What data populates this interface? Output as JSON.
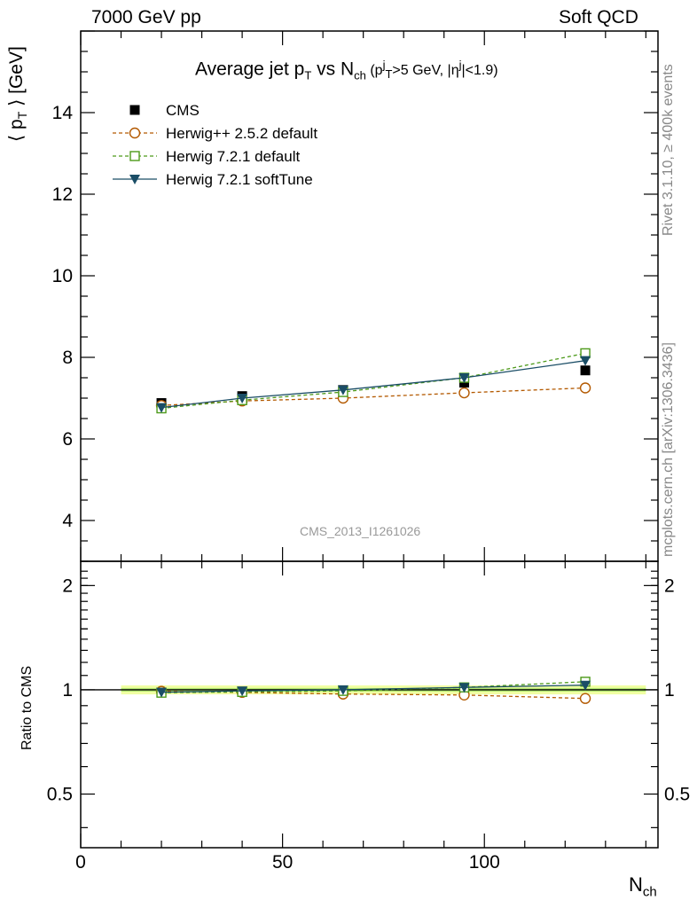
{
  "header": {
    "left": "7000 GeV pp",
    "right": "Soft QCD"
  },
  "side_labels": {
    "rivet": "Rivet 3.1.10, ≥ 400k events",
    "mcplots": "mcplots.cern.ch [arXiv:1306.3436]"
  },
  "analysis_id": "CMS_2013_I1261026",
  "colors": {
    "cms": "#000000",
    "herwigpp": "#b35900",
    "herwig721": "#4d9a1a",
    "softtune": "#1a4d66",
    "band_outer": "#eeff99",
    "band_inner": "#66cc33"
  },
  "chart_data": [
    {
      "type": "line",
      "title_main": "Average jet p",
      "title_main_sub": "T",
      "title_mid": " vs N",
      "title_mid_sub": "ch",
      "title_cut1": " (p",
      "title_cut1_sup": "j",
      "title_cut1_sub": "T",
      "title_cut2": ">5 GeV, |η",
      "title_cut2_sup": "j",
      "title_cut3": "|<1.9)",
      "ylabel": "⟨ p",
      "ylabel_sub": "T",
      "ylabel_tail": " ⟩ [GeV]",
      "xlim": [
        0,
        143
      ],
      "ylim": [
        3.0,
        16.0
      ],
      "yticks": [
        4,
        6,
        8,
        10,
        12,
        14
      ],
      "ytick_labels": [
        "4",
        "6",
        "8",
        "10",
        "12",
        "14"
      ],
      "series": [
        {
          "name": "CMS",
          "style": "data-square",
          "x": [
            20,
            40,
            65,
            95,
            125
          ],
          "y": [
            6.88,
            7.05,
            7.2,
            7.38,
            7.68
          ]
        },
        {
          "name": "Herwig++ 2.5.2 default",
          "style": "open-circle",
          "x": [
            20,
            40,
            65,
            95,
            125
          ],
          "y": [
            6.82,
            6.93,
            7.0,
            7.13,
            7.25
          ]
        },
        {
          "name": "Herwig 7.2.1 default",
          "style": "open-square",
          "x": [
            20,
            40,
            65,
            95,
            125
          ],
          "y": [
            6.75,
            6.95,
            7.15,
            7.5,
            8.1
          ]
        },
        {
          "name": "Herwig 7.2.1 softTune",
          "style": "triangle-down",
          "x": [
            20,
            40,
            65,
            95,
            125
          ],
          "y": [
            6.77,
            7.0,
            7.2,
            7.5,
            7.92
          ]
        }
      ]
    },
    {
      "type": "line",
      "ylabel": "Ratio to CMS",
      "xlabel": "N",
      "xlabel_sub": "ch",
      "xlim": [
        0,
        143
      ],
      "ylim": [
        0.35,
        2.35
      ],
      "yscale": "log",
      "yticks": [
        0.5,
        1,
        2
      ],
      "ytick_labels": [
        "0.5",
        "1",
        "2"
      ],
      "xticks": [
        0,
        50,
        100
      ],
      "xtick_labels": [
        "0",
        "50",
        "100"
      ],
      "band_x": [
        10,
        140
      ],
      "series": [
        {
          "name": "Herwig++ 2.5.2 default",
          "style": "open-circle",
          "x": [
            20,
            40,
            65,
            95,
            125
          ],
          "y": [
            0.99,
            0.983,
            0.972,
            0.966,
            0.944
          ]
        },
        {
          "name": "Herwig 7.2.1 default",
          "style": "open-square",
          "x": [
            20,
            40,
            65,
            95,
            125
          ],
          "y": [
            0.981,
            0.986,
            0.993,
            1.016,
            1.055
          ]
        },
        {
          "name": "Herwig 7.2.1 softTune",
          "style": "triangle-down",
          "x": [
            20,
            40,
            65,
            95,
            125
          ],
          "y": [
            0.984,
            0.993,
            1.0,
            1.016,
            1.031
          ]
        }
      ]
    }
  ]
}
